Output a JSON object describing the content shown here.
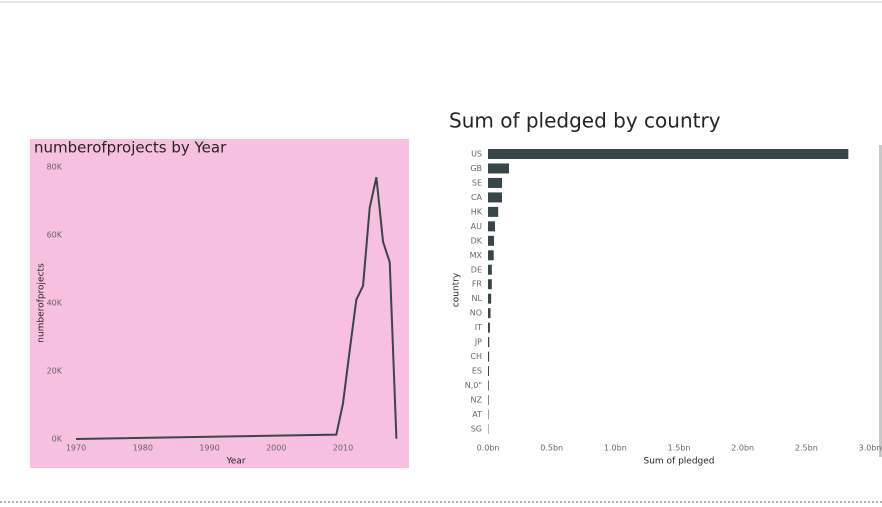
{
  "chart_data": [
    {
      "type": "line",
      "title": "numberofprojects by Year",
      "x_label": "Year",
      "y_label": "numberofprojects",
      "x": [
        1970,
        2009,
        2010,
        2011,
        2012,
        2013,
        2014,
        2015,
        2016,
        2017,
        2018
      ],
      "values": [
        7,
        1300,
        10500,
        26000,
        41000,
        45000,
        68000,
        77000,
        58000,
        52000,
        100
      ],
      "color": "#374649",
      "background": "#f7c0df",
      "xlim": [
        1968.5,
        2019.5
      ],
      "xticks": [
        1970,
        1980,
        1990,
        2000,
        2010
      ],
      "ylim": [
        0,
        80000
      ],
      "yticks": [
        {
          "value": 0,
          "label": "0K"
        },
        {
          "value": 20000,
          "label": "20K"
        },
        {
          "value": 40000,
          "label": "40K"
        },
        {
          "value": 60000,
          "label": "60K"
        },
        {
          "value": 80000,
          "label": "80K"
        }
      ]
    },
    {
      "type": "hbar",
      "title": "Sum of pledged by country",
      "x_label": "Sum of pledged",
      "y_label": "country",
      "categories": [
        "US",
        "GB",
        "SE",
        "CA",
        "HK",
        "AU",
        "DK",
        "MX",
        "DE",
        "FR",
        "NL",
        "NO",
        "IT",
        "JP",
        "CH",
        "ES",
        "N,0\"",
        "NZ",
        "AT",
        "SG"
      ],
      "values": [
        2.83,
        0.165,
        0.11,
        0.11,
        0.08,
        0.055,
        0.047,
        0.045,
        0.03,
        0.03,
        0.025,
        0.02,
        0.015,
        0.01,
        0.009,
        0.008,
        0.006,
        0.005,
        0.004,
        0.003
      ],
      "color": "#374649",
      "xlim": [
        0,
        3
      ],
      "xticks": [
        {
          "value": 0,
          "label": "0.0bn"
        },
        {
          "value": 0.5,
          "label": "0.5bn"
        },
        {
          "value": 1,
          "label": "1.0bn"
        },
        {
          "value": 1.5,
          "label": "1.5bn"
        },
        {
          "value": 2,
          "label": "2.0bn"
        },
        {
          "value": 2.5,
          "label": "2.5bn"
        },
        {
          "value": 3,
          "label": "3.0bn"
        }
      ]
    }
  ]
}
